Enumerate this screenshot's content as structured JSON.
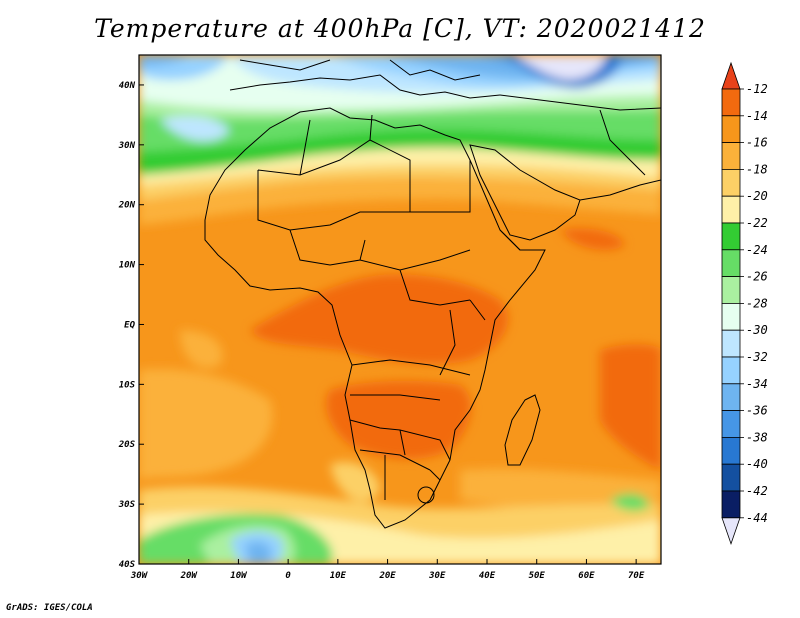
{
  "title": "Temperature at 400hPa [C], VT: 2020021412",
  "credit": "GrADS: IGES/COLA",
  "map": {
    "lon_ticks": [
      "30W",
      "20W",
      "10W",
      "0",
      "10E",
      "20E",
      "30E",
      "40E",
      "50E",
      "60E",
      "70E"
    ],
    "lat_ticks": [
      "40N",
      "30N",
      "20N",
      "10N",
      "EQ",
      "10S",
      "20S",
      "30S",
      "40S"
    ],
    "lon_range": [
      -30,
      75
    ],
    "lat_range": [
      -40,
      45
    ]
  },
  "colorbar": {
    "labels": [
      "-12",
      "-14",
      "-16",
      "-18",
      "-20",
      "-22",
      "-24",
      "-26",
      "-28",
      "-30",
      "-32",
      "-34",
      "-36",
      "-38",
      "-40",
      "-42",
      "-44"
    ],
    "colors": [
      "#e8421a",
      "#f26a0f",
      "#f7961b",
      "#fbb13a",
      "#fcd066",
      "#fef0a8",
      "#33cc33",
      "#66dd66",
      "#aaf0a0",
      "#e6fff0",
      "#bee6ff",
      "#96d2ff",
      "#6eb4f0",
      "#4696e6",
      "#2878d2",
      "#1450a0",
      "#0a1e64"
    ],
    "top_color": "#e8421a",
    "bottom_color": "#e6e6fa"
  }
}
